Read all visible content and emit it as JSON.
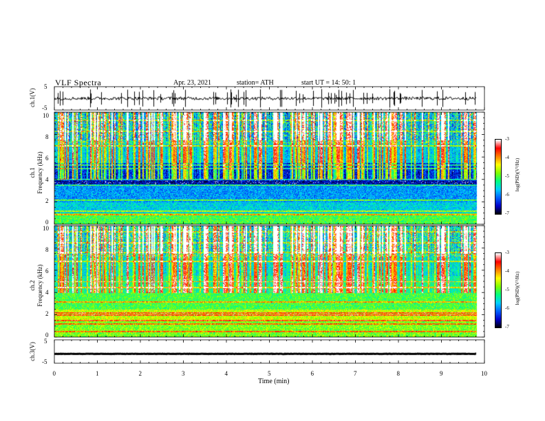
{
  "header": {
    "title": "VLF  Spectra",
    "date": "Apr. 23, 2021",
    "station": "station= ATH",
    "start": "start  UT  =    14: 50: 1"
  },
  "chart_data": [
    {
      "type": "line",
      "name": "ch1-waveform",
      "ylabel": "ch.1(V)",
      "ylim": [
        -5,
        5
      ],
      "yticks": [
        "5",
        "-5"
      ],
      "xlim": [
        0,
        10
      ],
      "baseline": 0,
      "spikes": true
    },
    {
      "type": "heatmap",
      "name": "ch1-spectrogram",
      "ylabel": "ch.1\nFrequency  (kHz)",
      "ylabel_line1": "ch.1",
      "ylabel_line2": "Frequency  (kHz)",
      "ylim": [
        0,
        10
      ],
      "yticks": [
        "10",
        "8",
        "6",
        "4",
        "2",
        "0"
      ],
      "data_xlim": [
        0,
        9.82
      ],
      "colorbar": {
        "label": "log(PSD)(V²/Hz)",
        "range": [
          -7,
          -3
        ],
        "ticks": [
          "-3",
          "-4",
          "-5",
          "-6",
          "-7"
        ]
      }
    },
    {
      "type": "heatmap",
      "name": "ch2-spectrogram",
      "ylabel_line1": "ch.2",
      "ylabel_line2": "Frequency  (kHz)",
      "ylim": [
        0,
        10
      ],
      "yticks": [
        "10",
        "8",
        "6",
        "4",
        "2",
        "0"
      ],
      "data_xlim": [
        0,
        9.82
      ],
      "colorbar": {
        "label": "log(PSD)(V²/Hz)",
        "range": [
          -7,
          -3
        ],
        "ticks": [
          "-3",
          "-4",
          "-5",
          "-6",
          "-7"
        ]
      }
    },
    {
      "type": "line",
      "name": "ch3-waveform",
      "ylabel": "ch.3(V)",
      "ylim": [
        -5,
        5
      ],
      "yticks": [
        "5",
        "-5"
      ],
      "xlim": [
        0,
        10
      ],
      "baseline": -1,
      "spikes": false
    }
  ],
  "xaxis": {
    "label": "Time  (min)",
    "ticks": [
      "0",
      "1",
      "2",
      "3",
      "4",
      "5",
      "6",
      "7",
      "8",
      "9",
      "10"
    ],
    "range": [
      0,
      10
    ]
  },
  "colors": {
    "scale": [
      "#000000",
      "#0000c8",
      "#0060ff",
      "#00d0ff",
      "#00ff80",
      "#80ff00",
      "#ffff00",
      "#ff8000",
      "#ff0000",
      "#ffffff"
    ]
  }
}
